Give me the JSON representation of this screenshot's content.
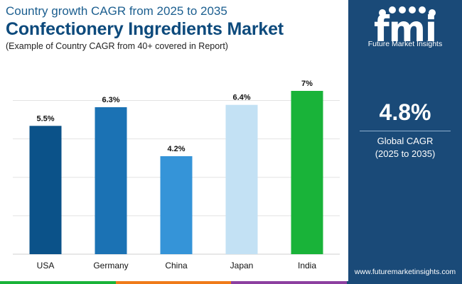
{
  "header": {
    "subtitle": "Country growth CAGR from 2025 to 2035",
    "title": "Confectionery Ingredients Market",
    "note": "(Example of Country CAGR from 40+ covered in Report)"
  },
  "chart_data": {
    "type": "bar",
    "categories": [
      "USA",
      "Germany",
      "China",
      "Japan",
      "India"
    ],
    "values": [
      5.5,
      6.3,
      4.2,
      6.4,
      7.0
    ],
    "value_labels": [
      "5.5%",
      "6.3%",
      "4.2%",
      "6.4%",
      "7%"
    ],
    "bar_colors": [
      "#0b5289",
      "#1b72b4",
      "#3594d8",
      "#c3e1f4",
      "#19b339"
    ],
    "ylim": [
      0,
      7.0
    ],
    "grid": true,
    "title": "",
    "xlabel": "",
    "ylabel": ""
  },
  "brand": {
    "logo_letters": "fmi",
    "name": "Future Market Insights",
    "website": "www.futuremarketinsights.com",
    "panel_color": "#1a4a78"
  },
  "kpi": {
    "value": "4.8%",
    "label_line1": "Global CAGR",
    "label_line2": "(2025 to 2035)"
  },
  "footer_colors": [
    "#19b339",
    "#ef7b1a",
    "#8d3fa0",
    "#1a4a78"
  ]
}
